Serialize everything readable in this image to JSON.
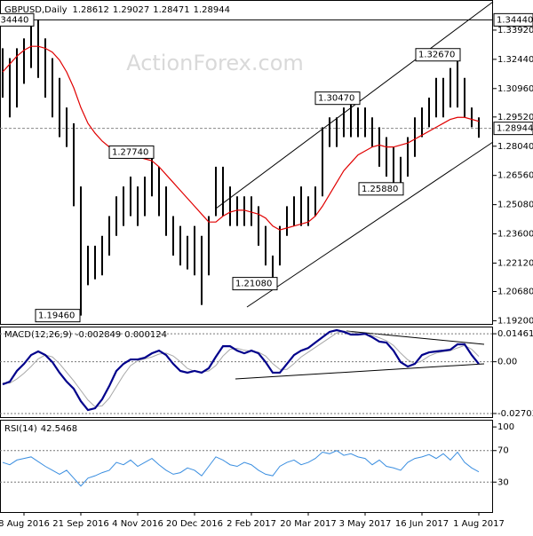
{
  "chart_data": [
    {
      "type": "ohlc",
      "title": "GBPUSD,Daily",
      "ohlc_header": [
        1.28612,
        1.29027,
        1.28471,
        1.28944
      ],
      "watermark": "ActionForex.com",
      "categories": [
        null,
        null,
        null,
        "8 Aug 2016",
        null,
        null,
        null,
        null,
        null,
        null,
        null,
        "21 Sep 2016",
        null,
        null,
        null,
        null,
        null,
        null,
        null,
        "4 Nov 2016",
        null,
        null,
        null,
        null,
        null,
        null,
        null,
        "20 Dec 2016",
        null,
        null,
        null,
        null,
        null,
        null,
        null,
        "2 Feb 2017",
        null,
        null,
        null,
        null,
        null,
        null,
        null,
        "20 Mar 2017",
        null,
        null,
        null,
        null,
        null,
        null,
        null,
        "3 May 2017",
        null,
        null,
        null,
        null,
        null,
        null,
        null,
        "16 Jun 2017",
        null,
        null,
        null,
        null,
        null,
        null,
        null,
        "1 Aug 2017"
      ],
      "high": [
        1.33,
        1.325,
        1.33,
        1.335,
        1.3444,
        1.3444,
        1.335,
        1.325,
        1.315,
        1.3,
        1.292,
        1.26,
        1.23,
        1.23,
        1.235,
        1.245,
        1.255,
        1.26,
        1.265,
        1.26,
        1.265,
        1.2774,
        1.27,
        1.26,
        1.245,
        1.24,
        1.235,
        1.24,
        1.235,
        1.245,
        1.27,
        1.27,
        1.26,
        1.255,
        1.255,
        1.255,
        1.25,
        1.24,
        1.225,
        1.24,
        1.25,
        1.255,
        1.26,
        1.255,
        1.26,
        1.29,
        1.295,
        1.295,
        1.3,
        1.3047,
        1.3,
        1.3,
        1.295,
        1.29,
        1.285,
        1.28,
        1.275,
        1.285,
        1.295,
        1.3,
        1.305,
        1.315,
        1.315,
        1.32,
        1.3267,
        1.315,
        1.3,
        1.295
      ],
      "low": [
        1.305,
        1.295,
        1.3,
        1.312,
        1.32,
        1.315,
        1.305,
        1.295,
        1.285,
        1.28,
        1.25,
        1.1946,
        1.21,
        1.213,
        1.215,
        1.225,
        1.235,
        1.24,
        1.245,
        1.24,
        1.245,
        1.255,
        1.245,
        1.235,
        1.225,
        1.22,
        1.218,
        1.215,
        1.2,
        1.215,
        1.245,
        1.245,
        1.24,
        1.24,
        1.24,
        1.24,
        1.23,
        1.22,
        1.2108,
        1.22,
        1.235,
        1.24,
        1.24,
        1.24,
        1.245,
        1.255,
        1.28,
        1.28,
        1.285,
        1.285,
        1.285,
        1.285,
        1.28,
        1.27,
        1.265,
        1.26,
        1.2588,
        1.265,
        1.275,
        1.285,
        1.29,
        1.295,
        1.295,
        1.3,
        1.3,
        1.295,
        1.29,
        1.2847
      ],
      "bar_color": "#000000",
      "ma": {
        "color": "#e00000",
        "values": [
          1.318,
          1.322,
          1.326,
          1.329,
          1.331,
          1.331,
          1.33,
          1.328,
          1.324,
          1.318,
          1.31,
          1.3,
          1.292,
          1.287,
          1.283,
          1.28,
          1.278,
          1.277,
          1.276,
          1.275,
          1.274,
          1.273,
          1.27,
          1.266,
          1.262,
          1.258,
          1.254,
          1.25,
          1.246,
          1.242,
          1.242,
          1.245,
          1.247,
          1.248,
          1.248,
          1.247,
          1.246,
          1.244,
          1.24,
          1.238,
          1.239,
          1.24,
          1.241,
          1.242,
          1.245,
          1.25,
          1.256,
          1.262,
          1.268,
          1.272,
          1.276,
          1.278,
          1.28,
          1.281,
          1.28,
          1.28,
          1.281,
          1.282,
          1.284,
          1.286,
          1.288,
          1.29,
          1.292,
          1.294,
          1.295,
          1.295,
          1.294,
          1.293
        ]
      },
      "ylim": [
        1.1904,
        1.354
      ],
      "yticks": [
        {
          "value": 1.192,
          "label": "1.19200"
        },
        {
          "value": 1.2068,
          "label": "1.20680"
        },
        {
          "value": 1.2212,
          "label": "1.22120"
        },
        {
          "value": 1.236,
          "label": "1.23600"
        },
        {
          "value": 1.2508,
          "label": "1.25080"
        },
        {
          "value": 1.2656,
          "label": "1.26560"
        },
        {
          "value": 1.2804,
          "label": "1.28040"
        },
        {
          "value": 1.2952,
          "label": "1.29520"
        },
        {
          "value": 1.3096,
          "label": "1.30960"
        },
        {
          "value": 1.3244,
          "label": "1.32440"
        },
        {
          "value": 1.3392,
          "label": "1.33920"
        }
      ],
      "level_markers": [
        {
          "value": 1.3444,
          "label": "1.34440"
        },
        {
          "value": 1.28944,
          "label": "1.28944"
        }
      ],
      "annotations": [
        {
          "value": 1.3444,
          "label": "1.34440"
        },
        {
          "value": 1.3267,
          "label": "1.32670"
        },
        {
          "value": 1.3047,
          "label": "1.30470"
        },
        {
          "value": 1.2774,
          "label": "1.27740"
        },
        {
          "value": 1.2588,
          "label": "1.25880"
        },
        {
          "value": 1.2108,
          "label": "1.21080"
        },
        {
          "value": 1.1946,
          "label": "1.19460"
        }
      ]
    },
    {
      "type": "macd",
      "title": "MACD(12,26,9)",
      "header_values": [
        -0.002849,
        0.000124
      ],
      "ylim": [
        -0.0289,
        0.0179
      ],
      "yticks": [
        0.014614,
        {
          "value": 0,
          "label": "0.00"
        },
        -0.027031
      ],
      "series": [
        {
          "color": "#00008b",
          "values": [
            -0.0118,
            -0.0104,
            -0.0048,
            -0.0011,
            0.0035,
            0.0054,
            0.0035,
            -0.0002,
            -0.0057,
            -0.0104,
            -0.0141,
            -0.0206,
            -0.0252,
            -0.0243,
            -0.0196,
            -0.0127,
            -0.0048,
            -0.0011,
            0.0012,
            0.0012,
            0.0021,
            0.0044,
            0.0058,
            0.0035,
            -0.0011,
            -0.0048,
            -0.0057,
            -0.0048,
            -0.0057,
            -0.0034,
            0.0026,
            0.0081,
            0.0081,
            0.0058,
            0.0044,
            0.0058,
            0.0044,
            -0.0002,
            -0.0057,
            -0.0057,
            -0.0011,
            0.0035,
            0.0058,
            0.0072,
            0.01,
            0.0128,
            0.0156,
            0.0165,
            0.0156,
            0.0142,
            0.0142,
            0.0146,
            0.0128,
            0.0105,
            0.01,
            0.0058,
            -0.0002,
            -0.0025,
            -0.0011,
            0.0035,
            0.0049,
            0.0054,
            0.0058,
            0.0063,
            0.0091,
            0.0091,
            0.0035,
            -0.0011
          ]
        },
        {
          "color": "#a8a8a8",
          "values": [
            -0.011,
            -0.0112,
            -0.009,
            -0.006,
            -0.0025,
            0.0015,
            0.0035,
            0.0025,
            -0.001,
            -0.0055,
            -0.01,
            -0.015,
            -0.02,
            -0.0235,
            -0.023,
            -0.019,
            -0.013,
            -0.007,
            -0.002,
            0.0005,
            0.0015,
            0.0025,
            0.004,
            0.0045,
            0.003,
            0,
            -0.0035,
            -0.005,
            -0.0053,
            -0.0048,
            -0.002,
            0.003,
            0.0065,
            0.007,
            0.006,
            0.0055,
            0.005,
            0.003,
            -0.001,
            -0.004,
            -0.004,
            -0.001,
            0.0025,
            0.005,
            0.0075,
            0.01,
            0.0125,
            0.015,
            0.016,
            0.0155,
            0.0148,
            0.0145,
            0.0138,
            0.0125,
            0.011,
            0.0085,
            0.0045,
            0.001,
            -0.001,
            0.0005,
            0.003,
            0.0045,
            0.0053,
            0.0058,
            0.0072,
            0.0085,
            0.0065,
            0.0028
          ]
        }
      ]
    },
    {
      "type": "rsi",
      "title": "RSI(14)",
      "header_values": [
        42.5468
      ],
      "ylim": [
        -8,
        108
      ],
      "yticks": [
        100,
        70,
        30
      ],
      "series": [
        {
          "color": "#3a8ee0",
          "values": [
            55,
            52,
            58,
            60,
            62,
            56,
            50,
            45,
            40,
            45,
            35,
            25,
            35,
            38,
            42,
            45,
            55,
            52,
            58,
            50,
            55,
            60,
            52,
            45,
            40,
            42,
            48,
            45,
            38,
            50,
            62,
            58,
            52,
            50,
            55,
            52,
            45,
            40,
            38,
            50,
            55,
            58,
            52,
            55,
            60,
            68,
            66,
            70,
            64,
            66,
            62,
            60,
            52,
            58,
            50,
            48,
            45,
            55,
            60,
            62,
            65,
            60,
            66,
            58,
            68,
            55,
            48,
            43
          ]
        }
      ]
    }
  ]
}
